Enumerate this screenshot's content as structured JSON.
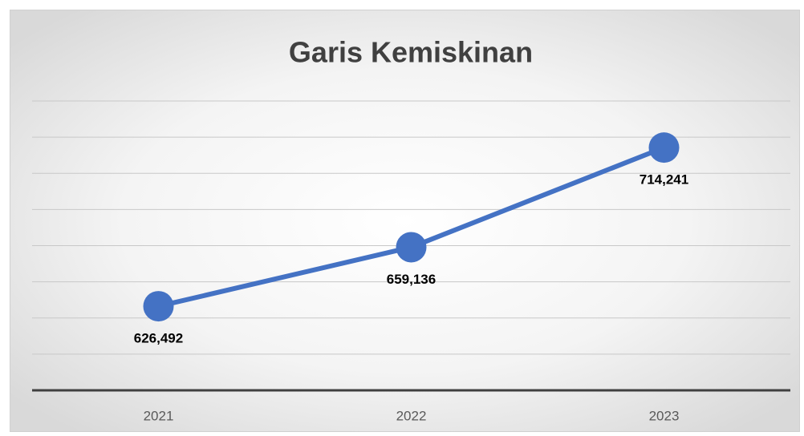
{
  "chart_data": {
    "type": "line",
    "title": "Garis Kemiskinan",
    "categories": [
      "2021",
      "2022",
      "2023"
    ],
    "series": [
      {
        "name": "Garis Kemiskinan",
        "color": "#4472c4",
        "values": [
          626492,
          659136,
          714241
        ],
        "value_labels": [
          "626,492",
          "659,136",
          "714,241"
        ]
      }
    ],
    "ylim": [
      580000,
      740000
    ],
    "yticks": [
      580000,
      600000,
      620000,
      640000,
      660000,
      680000,
      700000,
      720000,
      740000
    ],
    "grid": true
  }
}
